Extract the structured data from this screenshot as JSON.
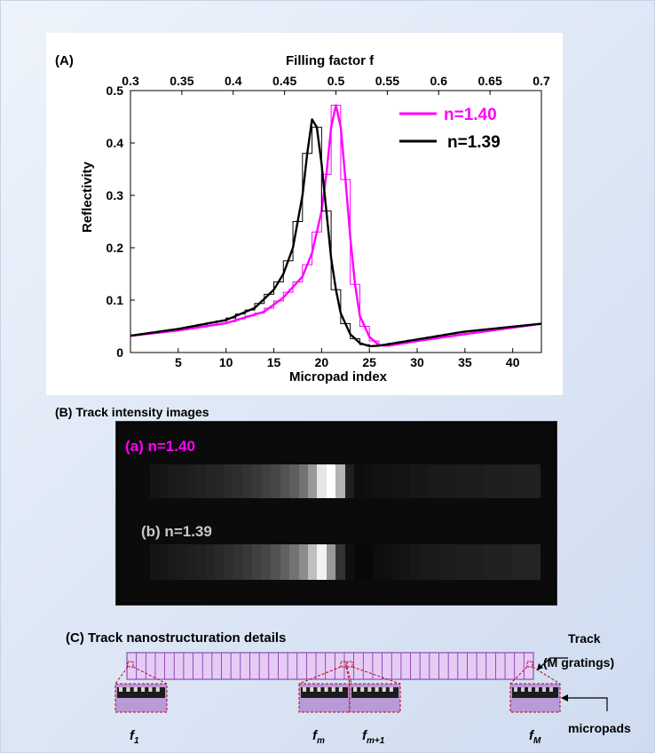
{
  "panel_a": {
    "label": "(A)",
    "top_axis_title": "Filling factor f",
    "top_ticks": [
      "0.3",
      "0.35",
      "0.4",
      "0.45",
      "0.5",
      "0.55",
      "0.6",
      "0.65",
      "0.7"
    ]
  },
  "chart_data": {
    "type": "line",
    "title": "",
    "xlabel": "Micropad index",
    "ylabel": "Reflectivity",
    "xlim": [
      0,
      43
    ],
    "ylim": [
      0,
      0.5
    ],
    "xticks": [
      5,
      10,
      15,
      20,
      25,
      30,
      35,
      40
    ],
    "yticks": [
      0,
      0.1,
      0.2,
      0.3,
      0.4,
      0.5
    ],
    "ytick_labels": [
      "0",
      "0.1",
      "0.2",
      "0.3",
      "0.4",
      "0.5"
    ],
    "legend_position": "top-right",
    "series": [
      {
        "name": "n=1.40",
        "color": "#ff00ff",
        "x": [
          0,
          5,
          10,
          14,
          16,
          18,
          19,
          20,
          20.5,
          21,
          21.5,
          22,
          22.5,
          23,
          23.5,
          24,
          25,
          26,
          27,
          30,
          35,
          43
        ],
        "y": [
          0.032,
          0.042,
          0.056,
          0.078,
          0.105,
          0.145,
          0.19,
          0.27,
          0.34,
          0.43,
          0.472,
          0.43,
          0.33,
          0.22,
          0.13,
          0.07,
          0.03,
          0.014,
          0.013,
          0.022,
          0.035,
          0.055
        ]
      },
      {
        "name": "n=1.39",
        "color": "#000000",
        "x": [
          0,
          5,
          10,
          13,
          15,
          16,
          17,
          18,
          18.5,
          19,
          19.5,
          20,
          20.5,
          21,
          21.5,
          22,
          23,
          24,
          25,
          26,
          30,
          35,
          43
        ],
        "y": [
          0.032,
          0.045,
          0.062,
          0.085,
          0.12,
          0.15,
          0.2,
          0.3,
          0.38,
          0.445,
          0.43,
          0.36,
          0.27,
          0.18,
          0.12,
          0.075,
          0.035,
          0.018,
          0.012,
          0.013,
          0.025,
          0.04,
          0.055
        ]
      }
    ]
  },
  "panel_b": {
    "title": "(B) Track intensity images",
    "track_a_label": "(a) n=1.40",
    "track_b_label": "(b) n=1.39",
    "track_a_color": "#ff00ff",
    "track_b_color": "#c8c8c8",
    "track_a_intensity": [
      0.08,
      0.09,
      0.1,
      0.11,
      0.12,
      0.13,
      0.14,
      0.15,
      0.17,
      0.18,
      0.2,
      0.22,
      0.25,
      0.28,
      0.32,
      0.37,
      0.45,
      0.6,
      0.9,
      1.0,
      0.7,
      0.12,
      0.05,
      0.06,
      0.07,
      0.07,
      0.08,
      0.08,
      0.09,
      0.09,
      0.1,
      0.1,
      0.1,
      0.11,
      0.11,
      0.11,
      0.12,
      0.12,
      0.12,
      0.13,
      0.13,
      0.13
    ],
    "track_b_intensity": [
      0.08,
      0.09,
      0.1,
      0.11,
      0.12,
      0.13,
      0.14,
      0.16,
      0.18,
      0.2,
      0.22,
      0.25,
      0.28,
      0.32,
      0.38,
      0.45,
      0.55,
      0.75,
      0.95,
      0.6,
      0.2,
      0.06,
      0.03,
      0.03,
      0.05,
      0.06,
      0.07,
      0.08,
      0.09,
      0.1,
      0.1,
      0.11,
      0.11,
      0.12,
      0.12,
      0.12,
      0.13,
      0.13,
      0.13,
      0.14,
      0.14,
      0.14
    ]
  },
  "panel_c": {
    "title": "(C) Track nanostructuration details",
    "track_label_1": "Track",
    "track_label_2": "(M gratings)",
    "micropads_label": "micropads",
    "f_1": "f",
    "f_1_sub": "1",
    "f_m": "f",
    "f_m_sub": "m",
    "f_m1": "f",
    "f_m1_sub": "m+1",
    "f_M": "f",
    "f_M_sub": "M",
    "track_fill": "#e6ccf5",
    "track_stroke": "#7a2fa8"
  }
}
